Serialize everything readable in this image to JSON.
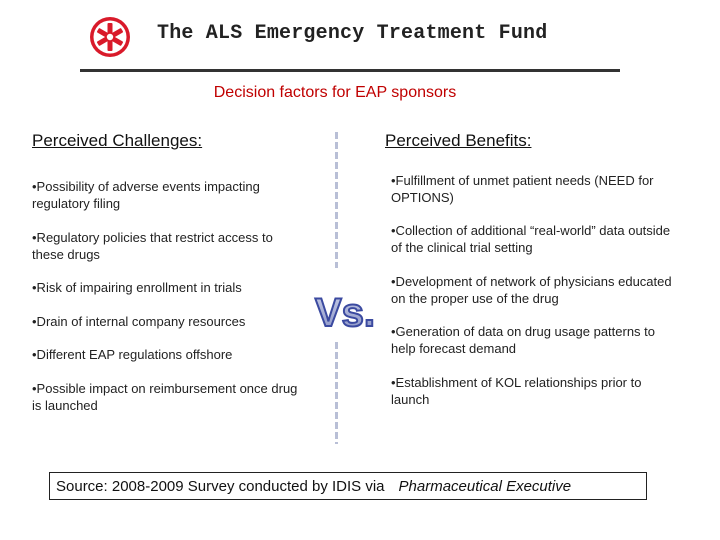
{
  "header": {
    "title": "The ALS Emergency Treatment Fund",
    "logo_color": "#d91a2a"
  },
  "subtitle": "Decision factors for EAP sponsors",
  "challenges": {
    "heading": "Perceived Challenges:",
    "items": [
      "•Possibility of adverse events impacting regulatory filing",
      "•Regulatory policies that restrict access to these drugs",
      "•Risk of impairing enrollment in trials",
      "•Drain of internal company resources",
      "•Different EAP regulations offshore",
      "•Possible impact on reimbursement once drug is launched"
    ]
  },
  "benefits": {
    "heading": "Perceived Benefits:",
    "items": [
      "•Fulfillment of unmet patient needs (NEED for OPTIONS)",
      "•Collection of additional “real-world” data outside of the clinical trial setting",
      "•Development of network of physicians educated on the proper use of the drug",
      "•Generation of data on drug usage patterns to help forecast demand",
      "•Establishment of KOL relationships prior to launch"
    ]
  },
  "versus_label": "Vs.",
  "source": {
    "label": "Source:   2008-2009 Survey conducted by IDIS via",
    "publication": "Pharmaceutical Executive"
  }
}
